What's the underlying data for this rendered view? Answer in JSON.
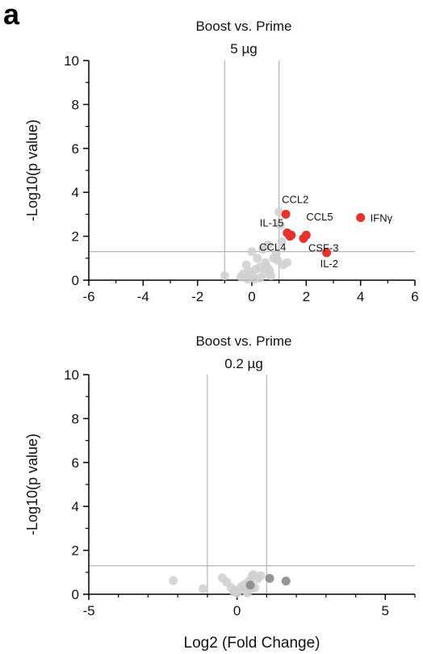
{
  "figure": {
    "panel_label": "a"
  },
  "chart_data": [
    {
      "type": "scatter",
      "title": "Boost vs. Prime",
      "subtitle": "5 µg",
      "xlabel": "",
      "ylabel": "-Log10(p value)",
      "xlim": [
        -6,
        6
      ],
      "ylim": [
        0,
        10
      ],
      "xticks": [
        -6,
        -4,
        -2,
        0,
        2,
        4,
        6
      ],
      "yticks": [
        0,
        2,
        4,
        6,
        8,
        10
      ],
      "vlines": [
        -1,
        1
      ],
      "hline": 1.3,
      "significant_color": "#e8312a",
      "nonsignificant_color": "#cfcfcf",
      "points_significant": [
        {
          "x": 1.25,
          "y": 3.0,
          "label": "CCL2"
        },
        {
          "x": 4.0,
          "y": 2.85,
          "label": "IFNγ"
        },
        {
          "x": 1.3,
          "y": 2.15,
          "label": "IL-15"
        },
        {
          "x": 1.45,
          "y": 2.05,
          "label": ""
        },
        {
          "x": 2.0,
          "y": 2.05,
          "label": "CCL5"
        },
        {
          "x": 1.9,
          "y": 1.9,
          "label": "CSF-3"
        },
        {
          "x": 1.4,
          "y": 2.0,
          "label": "CCL4"
        },
        {
          "x": 2.75,
          "y": 1.25,
          "label": "IL-2"
        }
      ],
      "points_other": [
        {
          "x": -1.0,
          "y": 0.2
        },
        {
          "x": -0.4,
          "y": 0.15
        },
        {
          "x": -0.3,
          "y": 0.3
        },
        {
          "x": -0.2,
          "y": 0.7
        },
        {
          "x": -0.1,
          "y": 0.4
        },
        {
          "x": 0.0,
          "y": 0.25
        },
        {
          "x": 0.1,
          "y": 0.05
        },
        {
          "x": 0.15,
          "y": 0.5
        },
        {
          "x": 0.2,
          "y": 1.0
        },
        {
          "x": 0.3,
          "y": 0.6
        },
        {
          "x": 0.4,
          "y": 1.4
        },
        {
          "x": 0.45,
          "y": 0.3
        },
        {
          "x": 0.5,
          "y": 0.8
        },
        {
          "x": 0.6,
          "y": 1.6
        },
        {
          "x": 0.65,
          "y": 0.45
        },
        {
          "x": 0.7,
          "y": 0.2
        },
        {
          "x": 0.8,
          "y": 1.0
        },
        {
          "x": 0.9,
          "y": 1.2
        },
        {
          "x": 0.95,
          "y": 0.9
        },
        {
          "x": 1.0,
          "y": 3.1
        },
        {
          "x": 1.05,
          "y": 2.5
        },
        {
          "x": 1.1,
          "y": 1.75
        },
        {
          "x": 1.15,
          "y": 0.7
        },
        {
          "x": 1.3,
          "y": 0.8
        },
        {
          "x": 0.0,
          "y": 1.3
        },
        {
          "x": 0.3,
          "y": 0.1
        },
        {
          "x": 0.55,
          "y": 0.6
        },
        {
          "x": -0.15,
          "y": 0.05
        }
      ],
      "labels": {
        "CCL2": "CCL2",
        "IFNγ": "IFNγ",
        "IL-15": "IL-15",
        "CCL5": "CCL5",
        "CSF-3": "CSF-3",
        "CCL4": "CCL4",
        "IL-2": "IL-2"
      }
    },
    {
      "type": "scatter",
      "title": "Boost vs. Prime",
      "subtitle": "0.2 µg",
      "xlabel": "Log2 (Fold Change)",
      "ylabel": "-Log10(p value)",
      "xlim": [
        -5,
        6
      ],
      "ylim": [
        0,
        10
      ],
      "xticks": [
        -5,
        0,
        5
      ],
      "yticks": [
        0,
        2,
        4,
        6,
        8,
        10
      ],
      "vlines": [
        -1,
        1
      ],
      "hline": 1.3,
      "nonsignificant_color": "#cfcfcf",
      "dark_color": "#8a8a8a",
      "points_other": [
        {
          "x": -2.15,
          "y": 0.62
        },
        {
          "x": -1.15,
          "y": 0.25
        },
        {
          "x": -0.5,
          "y": 0.75
        },
        {
          "x": -0.35,
          "y": 0.55
        },
        {
          "x": -0.2,
          "y": 0.3
        },
        {
          "x": -0.1,
          "y": 0.1
        },
        {
          "x": 0.0,
          "y": 0.05
        },
        {
          "x": 0.05,
          "y": 0.2
        },
        {
          "x": 0.15,
          "y": 0.35
        },
        {
          "x": 0.25,
          "y": 0.45
        },
        {
          "x": 0.3,
          "y": 0.15
        },
        {
          "x": 0.4,
          "y": 0.6
        },
        {
          "x": 0.5,
          "y": 0.8
        },
        {
          "x": 0.55,
          "y": 0.9
        },
        {
          "x": 0.6,
          "y": 0.3
        },
        {
          "x": 0.7,
          "y": 0.7
        },
        {
          "x": 0.8,
          "y": 0.85
        },
        {
          "x": 0.35,
          "y": 0.05
        },
        {
          "x": 0.45,
          "y": 0.25
        },
        {
          "x": -0.05,
          "y": 0.15
        }
      ],
      "points_dark": [
        {
          "x": 1.1,
          "y": 0.72
        },
        {
          "x": 1.65,
          "y": 0.6
        },
        {
          "x": 0.45,
          "y": 0.42
        }
      ]
    }
  ]
}
